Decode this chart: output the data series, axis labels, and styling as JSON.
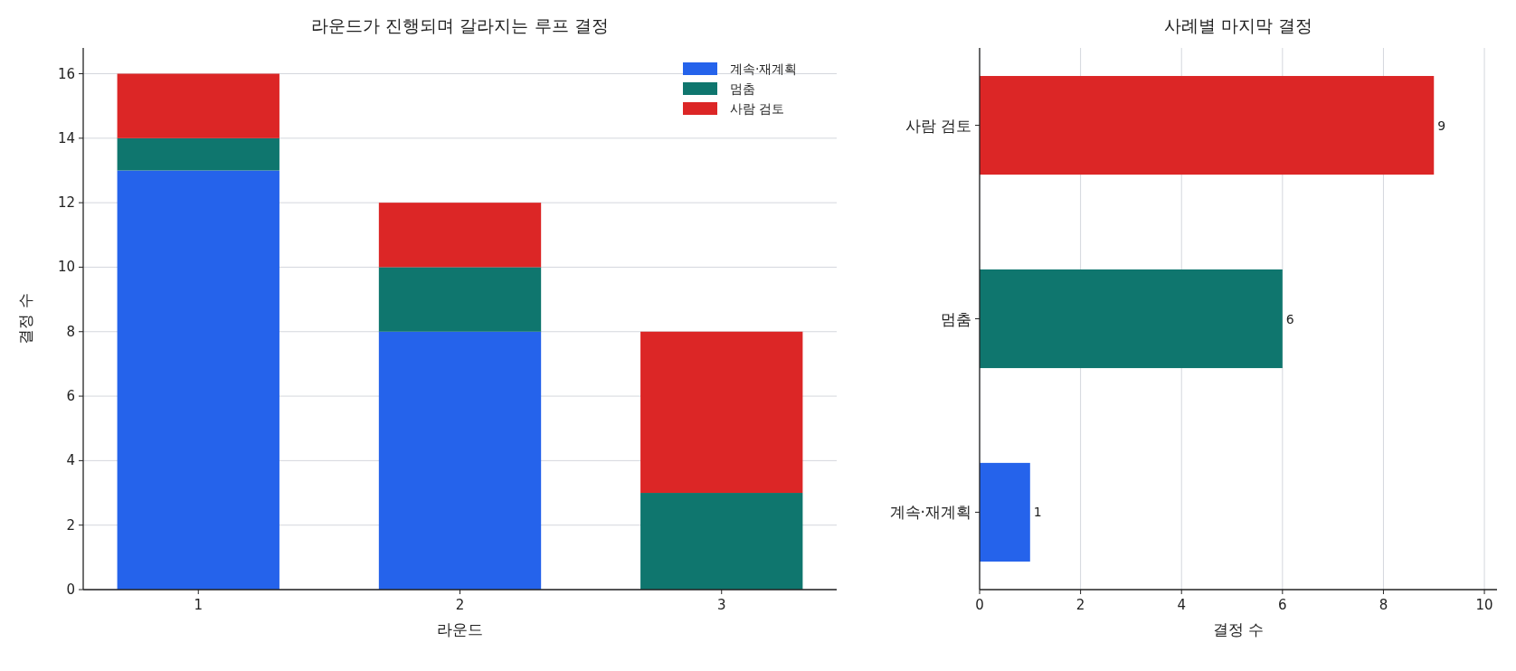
{
  "chart_data": [
    {
      "type": "bar",
      "title": "라운드가 진행되며 갈라지는 루프 결정",
      "xlabel": "라운드",
      "ylabel": "결정 수",
      "categories": [
        "1",
        "2",
        "3"
      ],
      "stacked": true,
      "series": [
        {
          "name": "계속·재계획",
          "color": "#2563eb",
          "values": [
            13,
            8,
            0
          ]
        },
        {
          "name": "멈춤",
          "color": "#0f766e",
          "values": [
            1,
            2,
            3
          ]
        },
        {
          "name": "사람 검토",
          "color": "#dc2626",
          "values": [
            2,
            2,
            5
          ]
        }
      ],
      "ylim": [
        0,
        16.8
      ],
      "yticks": [
        0,
        2,
        4,
        6,
        8,
        10,
        12,
        14,
        16
      ],
      "grid": "y",
      "legend": "top right"
    },
    {
      "type": "bar",
      "orientation": "horizontal",
      "title": "사례별 마지막 결정",
      "xlabel": "결정 수",
      "categories": [
        "사람 검토",
        "멈춤",
        "계속·재계획"
      ],
      "values": [
        9,
        6,
        1
      ],
      "colors": [
        "#dc2626",
        "#0f766e",
        "#2563eb"
      ],
      "data_labels": true,
      "xlim": [
        0,
        10.25
      ],
      "xticks": [
        0,
        2,
        4,
        6,
        8,
        10
      ],
      "grid": "x"
    }
  ]
}
